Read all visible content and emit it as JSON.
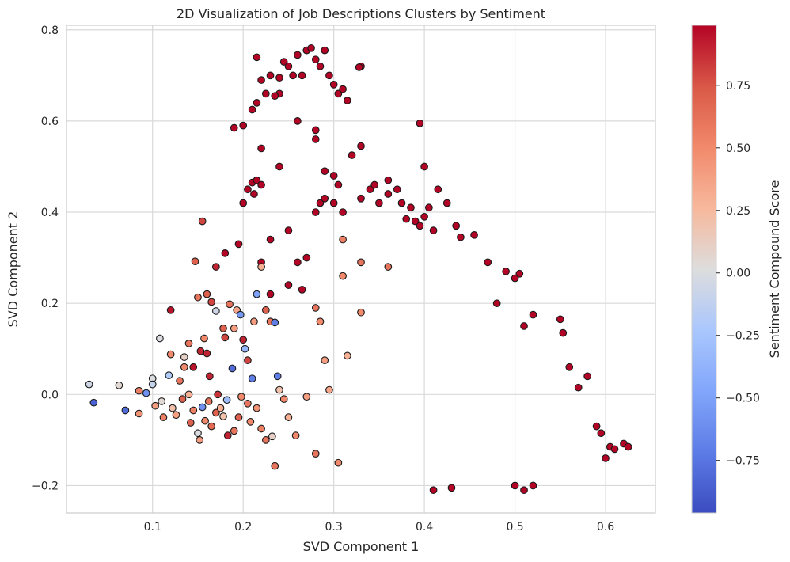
{
  "chart_data": {
    "type": "scatter",
    "title": "2D Visualization of Job Descriptions Clusters by Sentiment",
    "xlabel": "SVD Component 1",
    "ylabel": "SVD Component 2",
    "xlim": [
      0.005,
      0.655
    ],
    "ylim": [
      -0.26,
      0.81
    ],
    "xticks": [
      0.1,
      0.2,
      0.3,
      0.4,
      0.5,
      0.6
    ],
    "yticks": [
      -0.2,
      0.0,
      0.2,
      0.4,
      0.6,
      0.8
    ],
    "xtick_labels": [
      "0.1",
      "0.2",
      "0.3",
      "0.4",
      "0.5",
      "0.6"
    ],
    "ytick_labels": [
      "−0.2",
      "0.0",
      "0.2",
      "0.4",
      "0.6",
      "0.8"
    ],
    "grid": true,
    "colormap": "coolwarm",
    "colorbar": {
      "label": "Sentiment Compound Score",
      "range": [
        -0.96,
        0.99
      ],
      "ticks": [
        -0.75,
        -0.5,
        -0.25,
        0.0,
        0.25,
        0.5,
        0.75
      ],
      "tick_labels": [
        "−0.75",
        "−0.50",
        "−0.25",
        "0.00",
        "0.25",
        "0.50",
        "0.75"
      ]
    },
    "marker_edge_color": "#1a1a1a",
    "colors": {
      "grid": "#d9d9d9",
      "axis": "#cccccc",
      "cmap_low": "#3b4cc0",
      "cmap_mid": "#dddddd",
      "cmap_high": "#b40426"
    },
    "points": [
      [
        0.03,
        0.022,
        -0.05
      ],
      [
        0.035,
        -0.018,
        -0.85
      ],
      [
        0.063,
        0.02,
        0.05
      ],
      [
        0.07,
        -0.035,
        -0.8
      ],
      [
        0.085,
        0.008,
        0.55
      ],
      [
        0.085,
        -0.042,
        0.45
      ],
      [
        0.093,
        0.003,
        -0.6
      ],
      [
        0.1,
        0.035,
        0.0
      ],
      [
        0.1,
        0.022,
        -0.1
      ],
      [
        0.103,
        -0.025,
        0.4
      ],
      [
        0.11,
        -0.015,
        0.05
      ],
      [
        0.112,
        -0.05,
        0.55
      ],
      [
        0.118,
        0.042,
        -0.2
      ],
      [
        0.12,
        0.088,
        0.5
      ],
      [
        0.12,
        0.185,
        0.95
      ],
      [
        0.122,
        -0.03,
        0.2
      ],
      [
        0.126,
        -0.045,
        0.4
      ],
      [
        0.108,
        0.123,
        0.0
      ],
      [
        0.13,
        0.03,
        0.6
      ],
      [
        0.133,
        -0.01,
        0.7
      ],
      [
        0.135,
        0.06,
        0.5
      ],
      [
        0.135,
        0.082,
        0.1
      ],
      [
        0.14,
        0.112,
        0.6
      ],
      [
        0.142,
        -0.062,
        0.7
      ],
      [
        0.145,
        0.06,
        0.95
      ],
      [
        0.147,
        0.292,
        0.7
      ],
      [
        0.15,
        0.213,
        0.6
      ],
      [
        0.15,
        -0.085,
        0.0
      ],
      [
        0.152,
        -0.1,
        0.4
      ],
      [
        0.153,
        0.095,
        0.9
      ],
      [
        0.155,
        0.38,
        0.8
      ],
      [
        0.157,
        0.123,
        0.5
      ],
      [
        0.16,
        0.22,
        0.7
      ],
      [
        0.16,
        0.09,
        0.9
      ],
      [
        0.163,
        0.04,
        0.9
      ],
      [
        0.165,
        0.203,
        0.8
      ],
      [
        0.17,
        0.183,
        -0.05
      ],
      [
        0.17,
        0.28,
        0.9
      ],
      [
        0.172,
        0.0,
        0.85
      ],
      [
        0.178,
        0.145,
        0.7
      ],
      [
        0.18,
        0.125,
        0.8
      ],
      [
        0.183,
        -0.09,
        0.9
      ],
      [
        0.185,
        0.198,
        0.6
      ],
      [
        0.188,
        0.057,
        -0.8
      ],
      [
        0.19,
        0.145,
        0.4
      ],
      [
        0.193,
        0.185,
        0.35
      ],
      [
        0.197,
        0.175,
        -0.55
      ],
      [
        0.2,
        0.12,
        0.9
      ],
      [
        0.202,
        0.1,
        -0.35
      ],
      [
        0.205,
        0.075,
        0.8
      ],
      [
        0.21,
        0.035,
        -0.7
      ],
      [
        0.212,
        0.16,
        0.4
      ],
      [
        0.215,
        0.22,
        -0.5
      ],
      [
        0.22,
        0.28,
        0.3
      ],
      [
        0.225,
        0.185,
        0.7
      ],
      [
        0.23,
        0.16,
        0.6
      ],
      [
        0.235,
        0.158,
        -0.7
      ],
      [
        0.232,
        -0.092,
        0.1
      ],
      [
        0.238,
        0.04,
        -0.7
      ],
      [
        0.24,
        0.01,
        0.2
      ],
      [
        0.245,
        -0.01,
        0.5
      ],
      [
        0.25,
        -0.05,
        0.3
      ],
      [
        0.258,
        -0.09,
        0.5
      ],
      [
        0.235,
        -0.157,
        0.6
      ],
      [
        0.27,
        -0.005,
        0.4
      ],
      [
        0.28,
        0.19,
        0.6
      ],
      [
        0.285,
        0.16,
        0.5
      ],
      [
        0.29,
        0.075,
        0.4
      ],
      [
        0.295,
        0.01,
        0.35
      ],
      [
        0.31,
        0.26,
        0.5
      ],
      [
        0.315,
        0.085,
        0.3
      ],
      [
        0.33,
        0.29,
        0.6
      ],
      [
        0.33,
        0.18,
        0.5
      ],
      [
        0.36,
        0.28,
        0.6
      ],
      [
        0.31,
        0.34,
        0.55
      ],
      [
        0.305,
        -0.15,
        0.5
      ],
      [
        0.28,
        -0.13,
        0.6
      ],
      [
        0.17,
        -0.04,
        0.7
      ],
      [
        0.165,
        -0.07,
        0.65
      ],
      [
        0.175,
        -0.03,
        0.3
      ],
      [
        0.178,
        -0.048,
        0.2
      ],
      [
        0.182,
        -0.012,
        -0.3
      ],
      [
        0.155,
        -0.028,
        -0.6
      ],
      [
        0.14,
        0.0,
        0.3
      ],
      [
        0.145,
        -0.035,
        0.55
      ],
      [
        0.205,
        -0.02,
        0.6
      ],
      [
        0.208,
        -0.06,
        0.5
      ],
      [
        0.215,
        -0.03,
        0.45
      ],
      [
        0.22,
        -0.075,
        0.55
      ],
      [
        0.225,
        -0.1,
        0.6
      ],
      [
        0.158,
        -0.058,
        0.5
      ],
      [
        0.162,
        -0.015,
        0.6
      ],
      [
        0.19,
        -0.08,
        0.6
      ],
      [
        0.195,
        -0.05,
        0.7
      ],
      [
        0.198,
        -0.005,
        0.5
      ],
      [
        0.215,
        0.74,
        0.99
      ],
      [
        0.22,
        0.69,
        0.99
      ],
      [
        0.225,
        0.66,
        0.99
      ],
      [
        0.23,
        0.7,
        0.99
      ],
      [
        0.24,
        0.695,
        0.99
      ],
      [
        0.245,
        0.73,
        0.99
      ],
      [
        0.25,
        0.72,
        0.99
      ],
      [
        0.255,
        0.7,
        0.99
      ],
      [
        0.26,
        0.745,
        0.99
      ],
      [
        0.265,
        0.7,
        0.99
      ],
      [
        0.27,
        0.755,
        0.99
      ],
      [
        0.275,
        0.76,
        0.99
      ],
      [
        0.28,
        0.735,
        0.99
      ],
      [
        0.285,
        0.72,
        0.99
      ],
      [
        0.29,
        0.755,
        0.99
      ],
      [
        0.295,
        0.7,
        0.99
      ],
      [
        0.3,
        0.68,
        0.99
      ],
      [
        0.305,
        0.66,
        0.99
      ],
      [
        0.31,
        0.67,
        0.99
      ],
      [
        0.315,
        0.645,
        0.99
      ],
      [
        0.33,
        0.72,
        0.99
      ],
      [
        0.328,
        0.718,
        0.99
      ],
      [
        0.24,
        0.66,
        0.99
      ],
      [
        0.235,
        0.655,
        0.99
      ],
      [
        0.215,
        0.64,
        0.99
      ],
      [
        0.21,
        0.625,
        0.99
      ],
      [
        0.19,
        0.585,
        0.99
      ],
      [
        0.2,
        0.59,
        0.99
      ],
      [
        0.22,
        0.54,
        0.99
      ],
      [
        0.205,
        0.45,
        0.99
      ],
      [
        0.21,
        0.465,
        0.99
      ],
      [
        0.215,
        0.47,
        0.99
      ],
      [
        0.22,
        0.46,
        0.99
      ],
      [
        0.2,
        0.42,
        0.99
      ],
      [
        0.212,
        0.44,
        0.99
      ],
      [
        0.24,
        0.5,
        0.99
      ],
      [
        0.33,
        0.545,
        0.99
      ],
      [
        0.32,
        0.525,
        0.99
      ],
      [
        0.395,
        0.595,
        0.99
      ],
      [
        0.4,
        0.5,
        0.99
      ],
      [
        0.405,
        0.41,
        0.99
      ],
      [
        0.415,
        0.45,
        0.99
      ],
      [
        0.425,
        0.42,
        0.99
      ],
      [
        0.435,
        0.37,
        0.99
      ],
      [
        0.44,
        0.345,
        0.99
      ],
      [
        0.455,
        0.35,
        0.99
      ],
      [
        0.47,
        0.29,
        0.99
      ],
      [
        0.49,
        0.27,
        0.99
      ],
      [
        0.5,
        0.255,
        0.99
      ],
      [
        0.505,
        0.265,
        0.99
      ],
      [
        0.48,
        0.2,
        0.99
      ],
      [
        0.51,
        0.15,
        0.99
      ],
      [
        0.52,
        0.175,
        0.99
      ],
      [
        0.55,
        0.165,
        0.99
      ],
      [
        0.553,
        0.135,
        0.99
      ],
      [
        0.56,
        0.06,
        0.99
      ],
      [
        0.57,
        0.015,
        0.99
      ],
      [
        0.58,
        0.04,
        0.99
      ],
      [
        0.59,
        -0.07,
        0.99
      ],
      [
        0.595,
        -0.085,
        0.99
      ],
      [
        0.6,
        -0.14,
        0.99
      ],
      [
        0.605,
        -0.115,
        0.99
      ],
      [
        0.62,
        -0.108,
        0.99
      ],
      [
        0.625,
        -0.115,
        0.99
      ],
      [
        0.61,
        -0.12,
        0.99
      ],
      [
        0.5,
        -0.2,
        0.99
      ],
      [
        0.51,
        -0.21,
        0.99
      ],
      [
        0.41,
        -0.21,
        0.99
      ],
      [
        0.43,
        -0.205,
        0.99
      ],
      [
        0.52,
        -0.2,
        0.99
      ],
      [
        0.18,
        0.31,
        0.99
      ],
      [
        0.195,
        0.33,
        0.99
      ],
      [
        0.22,
        0.29,
        0.99
      ],
      [
        0.23,
        0.34,
        0.99
      ],
      [
        0.25,
        0.36,
        0.99
      ],
      [
        0.26,
        0.29,
        0.99
      ],
      [
        0.27,
        0.3,
        0.99
      ],
      [
        0.25,
        0.24,
        0.99
      ],
      [
        0.23,
        0.22,
        0.99
      ],
      [
        0.265,
        0.23,
        0.99
      ],
      [
        0.28,
        0.4,
        0.99
      ],
      [
        0.285,
        0.42,
        0.99
      ],
      [
        0.29,
        0.49,
        0.99
      ],
      [
        0.29,
        0.43,
        0.99
      ],
      [
        0.305,
        0.46,
        0.99
      ],
      [
        0.3,
        0.42,
        0.99
      ],
      [
        0.31,
        0.4,
        0.99
      ],
      [
        0.33,
        0.43,
        0.99
      ],
      [
        0.34,
        0.45,
        0.99
      ],
      [
        0.345,
        0.46,
        0.99
      ],
      [
        0.35,
        0.42,
        0.99
      ],
      [
        0.36,
        0.44,
        0.99
      ],
      [
        0.37,
        0.45,
        0.99
      ],
      [
        0.375,
        0.42,
        0.99
      ],
      [
        0.38,
        0.385,
        0.99
      ],
      [
        0.385,
        0.41,
        0.99
      ],
      [
        0.39,
        0.38,
        0.99
      ],
      [
        0.395,
        0.37,
        0.99
      ],
      [
        0.4,
        0.39,
        0.99
      ],
      [
        0.41,
        0.36,
        0.99
      ],
      [
        0.28,
        0.56,
        0.99
      ],
      [
        0.26,
        0.6,
        0.99
      ],
      [
        0.28,
        0.58,
        0.99
      ],
      [
        0.3,
        0.48,
        0.99
      ],
      [
        0.36,
        0.47,
        0.99
      ]
    ]
  }
}
